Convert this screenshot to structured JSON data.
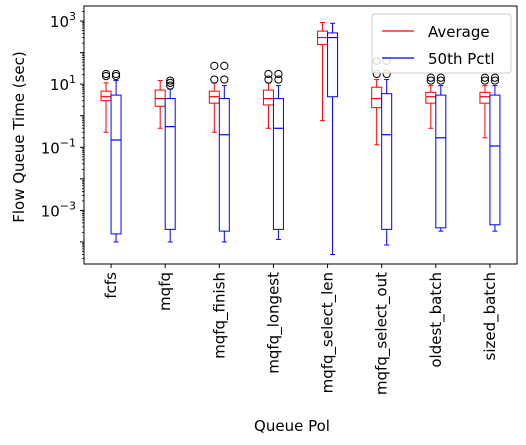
{
  "chart_data": {
    "type": "box",
    "xlabel": "Queue Pol",
    "ylabel": "Flow Queue Time (sec)",
    "yscale": "log",
    "ylim": [
      2e-05,
      3000
    ],
    "yticks": [
      {
        "value": 0.001,
        "base": "10",
        "exp": "−3"
      },
      {
        "value": 0.1,
        "base": "10",
        "exp": "−1"
      },
      {
        "value": 10,
        "base": "10",
        "exp": "1"
      },
      {
        "value": 1000,
        "base": "10",
        "exp": "3"
      }
    ],
    "categories": [
      "fcfs",
      "mqfq",
      "mqfq_finish",
      "mqfq_longest",
      "mqfq_select_len",
      "mqfq_select_out",
      "oldest_batch",
      "sized_batch"
    ],
    "legend": {
      "position": "upper right"
    },
    "series": [
      {
        "name": "Average",
        "color": "#ff0000",
        "boxes": [
          {
            "whislo": 0.3,
            "q1": 3.0,
            "med": 4.0,
            "q3": 6.0,
            "whishi": 11,
            "fliers": [
              18,
              21
            ]
          },
          {
            "whislo": 0.4,
            "q1": 2.0,
            "med": 3.5,
            "q3": 6.5,
            "whishi": 13,
            "fliers": []
          },
          {
            "whislo": 0.3,
            "q1": 2.5,
            "med": 4.0,
            "q3": 6.0,
            "whishi": 11,
            "fliers": [
              14,
              38
            ]
          },
          {
            "whislo": 0.4,
            "q1": 2.2,
            "med": 3.5,
            "q3": 6.5,
            "whishi": 11,
            "fliers": [
              14,
              21
            ]
          },
          {
            "whislo": 0.7,
            "q1": 180,
            "med": 300,
            "q3": 480,
            "whishi": 900,
            "fliers": []
          },
          {
            "whislo": 0.12,
            "q1": 1.8,
            "med": 3.5,
            "q3": 8.0,
            "whishi": 14,
            "fliers": [
              21,
              55
            ]
          },
          {
            "whislo": 0.4,
            "q1": 2.5,
            "med": 4.0,
            "q3": 5.5,
            "whishi": 9,
            "fliers": [
              13,
              16
            ]
          },
          {
            "whislo": 0.2,
            "q1": 2.5,
            "med": 4.0,
            "q3": 5.5,
            "whishi": 9,
            "fliers": [
              13,
              16
            ]
          }
        ]
      },
      {
        "name": "50th Pctl",
        "color": "#0000ff",
        "boxes": [
          {
            "whislo": 0.0001,
            "q1": 0.00018,
            "med": 0.17,
            "q3": 4.5,
            "whishi": 13,
            "fliers": [
              18,
              21
            ]
          },
          {
            "whislo": 0.0001,
            "q1": 0.00025,
            "med": 0.45,
            "q3": 3.5,
            "whishi": 7,
            "fliers": [
              9,
              11,
              13
            ]
          },
          {
            "whislo": 0.0001,
            "q1": 0.00022,
            "med": 0.25,
            "q3": 3.5,
            "whishi": 9,
            "fliers": [
              14,
              38
            ]
          },
          {
            "whislo": 0.00012,
            "q1": 0.00025,
            "med": 0.4,
            "q3": 3.5,
            "whishi": 9,
            "fliers": [
              14,
              21
            ]
          },
          {
            "whislo": 4e-05,
            "q1": 4.0,
            "med": 300,
            "q3": 420,
            "whishi": 850,
            "fliers": []
          },
          {
            "whislo": 8e-05,
            "q1": 0.00025,
            "med": 0.25,
            "q3": 5.0,
            "whishi": 14,
            "fliers": [
              21,
              55
            ]
          },
          {
            "whislo": 0.00022,
            "q1": 0.00028,
            "med": 0.2,
            "q3": 4.5,
            "whishi": 9,
            "fliers": [
              13,
              16
            ]
          },
          {
            "whislo": 0.00022,
            "q1": 0.00035,
            "med": 0.11,
            "q3": 4.5,
            "whishi": 9,
            "fliers": [
              13,
              16
            ]
          }
        ]
      }
    ]
  }
}
